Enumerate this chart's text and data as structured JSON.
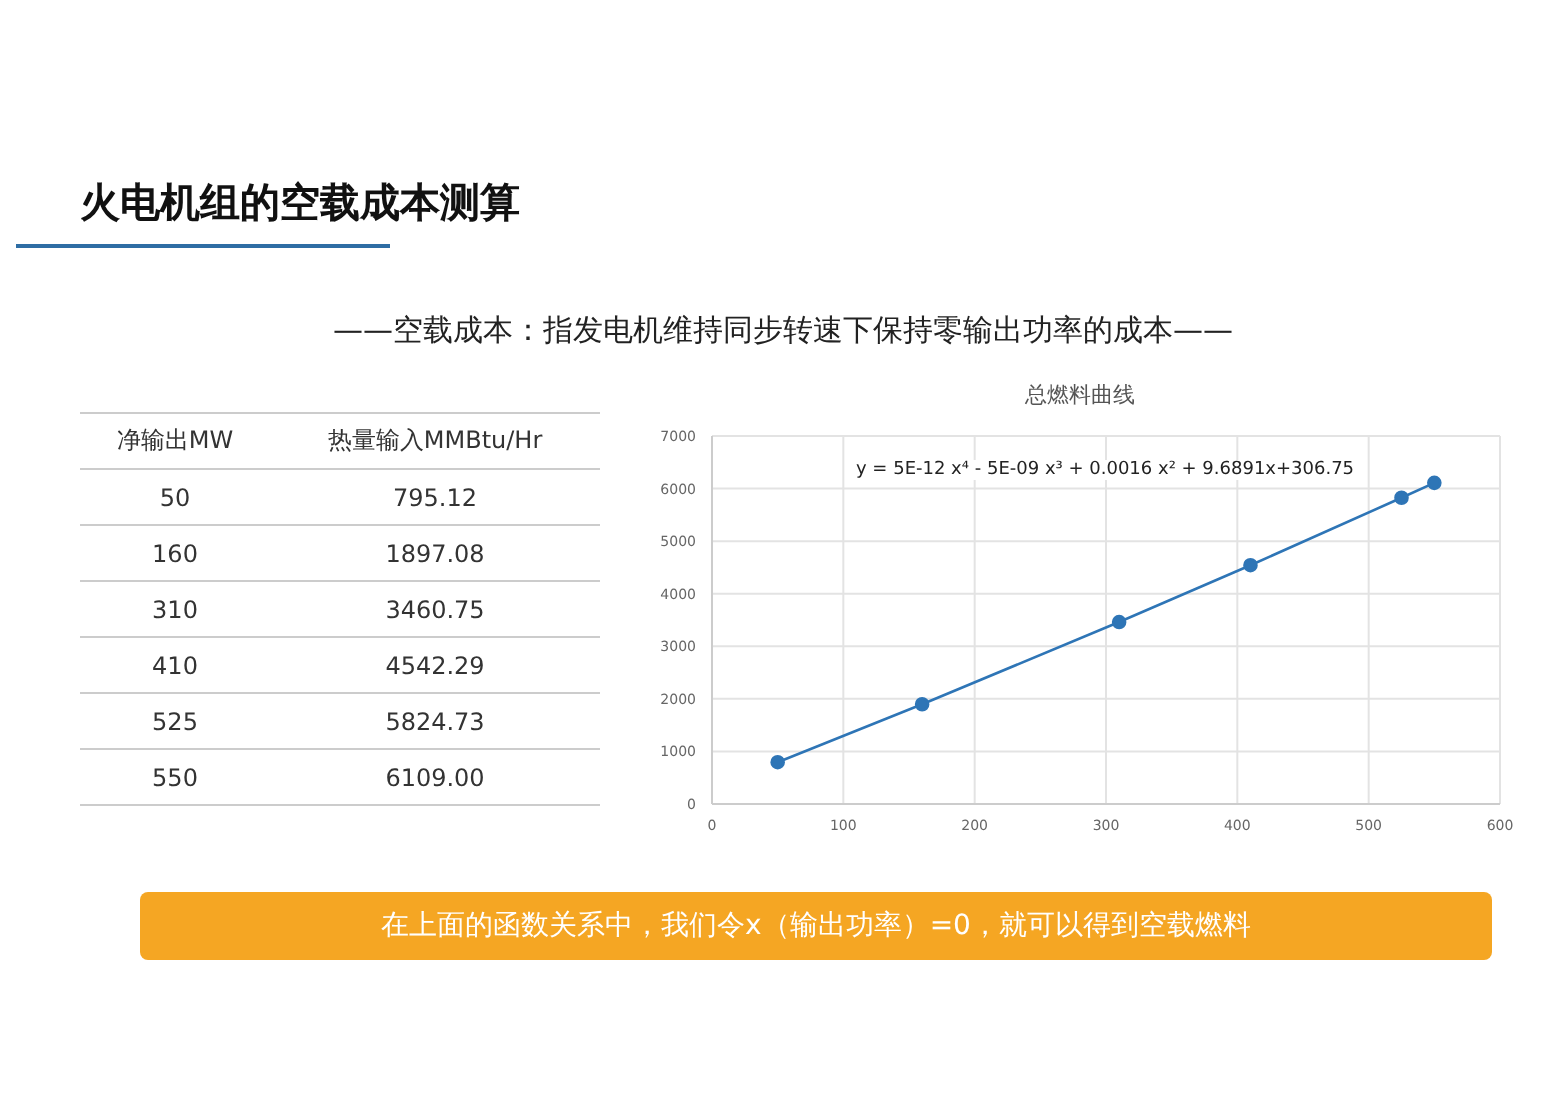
{
  "chart_data": [
    {
      "type": "other",
      "annotations": [
        "净输出MW",
        "热量输入MMBtu/Hr",
        "50",
        "795.12",
        "160",
        "1897.08",
        "310",
        "3460.75",
        "410",
        "4542.29",
        "525",
        "5824.73",
        "550",
        "6109.00"
      ]
    },
    {
      "type": "line",
      "title": "总燃料曲线",
      "x": [
        50,
        160,
        310,
        410,
        525,
        550
      ],
      "values": [
        795.12,
        1897.08,
        3460.75,
        4542.29,
        5824.73,
        6109.0
      ],
      "color": "#2e75b6",
      "marker": "circle",
      "grid": true,
      "xlim": [
        0,
        600
      ],
      "xticks": [
        0,
        100,
        200,
        300,
        400,
        500,
        600
      ],
      "ylim": [
        0,
        7000
      ],
      "yticks": [
        0,
        1000,
        2000,
        3000,
        4000,
        5000,
        6000,
        7000
      ],
      "annotations": [
        "火电机组的空载成本测算",
        "——空载成本：指发电机维持同步转速下保持零输出功率的成本——",
        "y = 5E-12 x⁴ - 5E-09 x³ + 0.0016 x² + 9.6891x+306.75",
        "在上面的函数关系中，我们令x（输出功率）=0，就可以得到空载燃料"
      ]
    }
  ]
}
